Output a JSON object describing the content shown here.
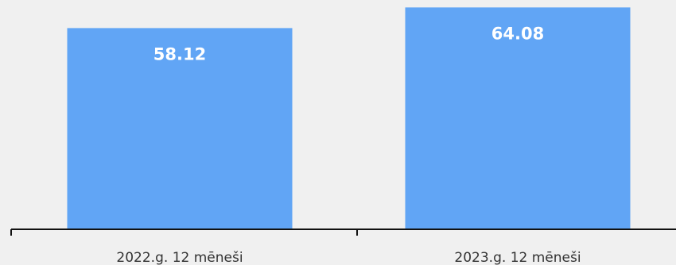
{
  "chart_data": {
    "type": "bar",
    "categories": [
      "2022.g. 12 mēneši",
      "2023.g. 12 mēneši"
    ],
    "values": [
      58.12,
      64.08
    ],
    "value_labels": [
      "58.12",
      "64.08"
    ],
    "title": "",
    "xlabel": "",
    "ylabel": "",
    "ylim": [
      0,
      66
    ],
    "grid": false,
    "legend": "none",
    "bar_color": "#61a5f5",
    "axis_color": "#111111",
    "label_color": "#333333",
    "value_label_color": "#ffffff",
    "background": "#f0f0f0"
  }
}
